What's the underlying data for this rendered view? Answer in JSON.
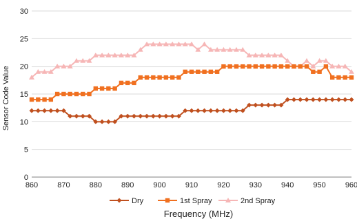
{
  "chart_data": {
    "type": "line",
    "title": "",
    "xlabel": "Frequency (MHz)",
    "ylabel": "Sensor Code Value",
    "xlim": [
      860,
      960
    ],
    "ylim": [
      0,
      30
    ],
    "x_ticks": [
      860,
      870,
      880,
      890,
      900,
      910,
      920,
      930,
      940,
      950,
      960
    ],
    "y_ticks": [
      0,
      5,
      10,
      15,
      20,
      25,
      30
    ],
    "grid": "horizontal",
    "legend_position": "bottom",
    "x": [
      860,
      862,
      864,
      866,
      868,
      870,
      872,
      874,
      876,
      878,
      880,
      882,
      884,
      886,
      888,
      890,
      892,
      894,
      896,
      898,
      900,
      902,
      904,
      906,
      908,
      910,
      912,
      914,
      916,
      918,
      920,
      922,
      924,
      926,
      928,
      930,
      932,
      934,
      936,
      938,
      940,
      942,
      944,
      946,
      948,
      950,
      952,
      954,
      956,
      958,
      960
    ],
    "series": [
      {
        "name": "Dry",
        "color": "#c0501f",
        "marker": "diamond",
        "values": [
          12,
          12,
          12,
          12,
          12,
          12,
          11,
          11,
          11,
          11,
          10,
          10,
          10,
          10,
          11,
          11,
          11,
          11,
          11,
          11,
          11,
          11,
          11,
          11,
          12,
          12,
          12,
          12,
          12,
          12,
          12,
          12,
          12,
          12,
          13,
          13,
          13,
          13,
          13,
          13,
          14,
          14,
          14,
          14,
          14,
          14,
          14,
          14,
          14,
          14,
          14
        ]
      },
      {
        "name": "1st Spray",
        "color": "#f07020",
        "marker": "square",
        "values": [
          14,
          14,
          14,
          14,
          15,
          15,
          15,
          15,
          15,
          15,
          16,
          16,
          16,
          16,
          17,
          17,
          17,
          18,
          18,
          18,
          18,
          18,
          18,
          18,
          19,
          19,
          19,
          19,
          19,
          19,
          20,
          20,
          20,
          20,
          20,
          20,
          20,
          20,
          20,
          20,
          20,
          20,
          20,
          20,
          19,
          19,
          20,
          18,
          18,
          18,
          18
        ]
      },
      {
        "name": "2nd Spray",
        "color": "#f6b6b6",
        "marker": "triangle",
        "values": [
          18,
          19,
          19,
          19,
          20,
          20,
          20,
          21,
          21,
          21,
          22,
          22,
          22,
          22,
          22,
          22,
          22,
          23,
          24,
          24,
          24,
          24,
          24,
          24,
          24,
          24,
          23,
          24,
          23,
          23,
          23,
          23,
          23,
          23,
          22,
          22,
          22,
          22,
          22,
          22,
          21,
          20,
          20,
          21,
          20,
          21,
          21,
          20,
          20,
          20,
          19
        ]
      }
    ]
  }
}
